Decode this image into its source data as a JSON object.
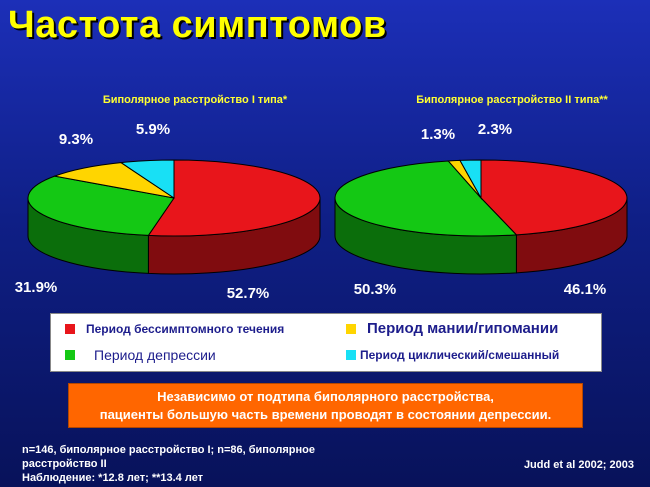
{
  "title": "Частота симптомов",
  "chart_data": [
    {
      "type": "pie",
      "title": "Биполярное расстройство I типа*",
      "series": [
        {
          "name": "Период бессимптомного течения",
          "value": 52.7,
          "label": "52.7%",
          "color": "#e8151b"
        },
        {
          "name": "Период депрессии",
          "value": 31.9,
          "label": "31.9%",
          "color": "#14c814"
        },
        {
          "name": "Период мании/гипомании",
          "value": 9.3,
          "label": "9.3%",
          "color": "#ffd500"
        },
        {
          "name": "Период циклический/смешанный",
          "value": 5.9,
          "label": "5.9%",
          "color": "#18e0f5"
        }
      ]
    },
    {
      "type": "pie",
      "title": "Биполярное расстройство II типа**",
      "series": [
        {
          "name": "Период бессимптомного течения",
          "value": 46.1,
          "label": "46.1%",
          "color": "#e8151b"
        },
        {
          "name": "Период депрессии",
          "value": 50.3,
          "label": "50.3%",
          "color": "#14c814"
        },
        {
          "name": "Период мании/гипомании",
          "value": 1.3,
          "label": "1.3%",
          "color": "#ffd500"
        },
        {
          "name": "Период циклический/смешанный",
          "value": 2.3,
          "label": "2.3%",
          "color": "#18e0f5"
        }
      ]
    }
  ],
  "legend": {
    "items": [
      {
        "label": "Период бессимптомного течения",
        "color": "#e8151b"
      },
      {
        "label": "Период мании/гипомании",
        "color": "#ffd500"
      },
      {
        "label": "Период депрессии",
        "color": "#14c814"
      },
      {
        "label": "Период циклический/смешанный",
        "color": "#18e0f5"
      }
    ]
  },
  "banner": {
    "line1": "Независимо от подтипа биполярного расстройства,",
    "line2": "пациенты большую часть времени проводят в состоянии депрессии."
  },
  "footnote": {
    "line1": "n=146, биполярное расстройство  I; n=86, биполярное",
    "line2": "расстройство II",
    "line3": "Наблюдение:  *12.8 лет; **13.4 лет"
  },
  "citation": "Judd et al 2002; 2003"
}
